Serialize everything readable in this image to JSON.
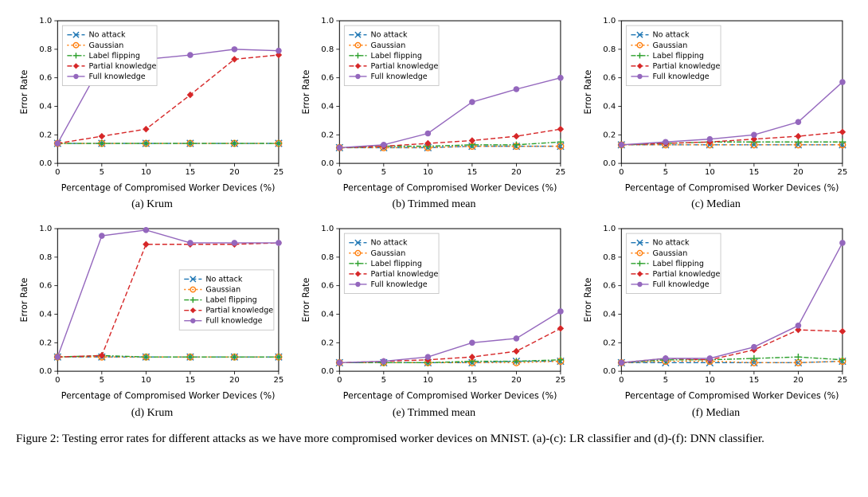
{
  "figure": {
    "caption": "Figure 2: Testing error rates for different attacks as we have more compromised worker devices on MNIST. (a)-(c): LR classifier and (d)-(f): DNN classifier.",
    "panels": [
      {
        "key": "a",
        "sub_caption": "(a) Krum",
        "legend_pos": "upper-left",
        "xlabel": "Percentage of Compromised Worker Devices (%)",
        "ylabel": "Error Rate",
        "x": [
          0,
          5,
          10,
          15,
          20,
          25
        ],
        "xlim": [
          0,
          25
        ],
        "ylim": [
          0,
          1.0
        ],
        "ytick_step": 0.2,
        "series": {
          "no_attack": [
            0.14,
            0.14,
            0.14,
            0.14,
            0.14,
            0.14
          ],
          "gaussian": [
            0.14,
            0.14,
            0.14,
            0.14,
            0.14,
            0.14
          ],
          "label_flipping": [
            0.14,
            0.14,
            0.14,
            0.14,
            0.14,
            0.14
          ],
          "partial_knowledge": [
            0.14,
            0.19,
            0.24,
            0.48,
            0.73,
            0.76
          ],
          "full_knowledge": [
            0.14,
            0.7,
            0.73,
            0.76,
            0.8,
            0.79
          ]
        }
      },
      {
        "key": "b",
        "sub_caption": "(b) Trimmed mean",
        "legend_pos": "upper-left",
        "xlabel": "Percentage of Compromised Worker Devices (%)",
        "ylabel": "Error Rate",
        "x": [
          0,
          5,
          10,
          15,
          20,
          25
        ],
        "xlim": [
          0,
          25
        ],
        "ylim": [
          0,
          1.0
        ],
        "ytick_step": 0.2,
        "series": {
          "no_attack": [
            0.11,
            0.11,
            0.11,
            0.12,
            0.12,
            0.12
          ],
          "gaussian": [
            0.11,
            0.11,
            0.11,
            0.12,
            0.12,
            0.12
          ],
          "label_flipping": [
            0.11,
            0.12,
            0.12,
            0.13,
            0.13,
            0.15
          ],
          "partial_knowledge": [
            0.11,
            0.12,
            0.14,
            0.16,
            0.19,
            0.24
          ],
          "full_knowledge": [
            0.11,
            0.13,
            0.21,
            0.43,
            0.52,
            0.6
          ]
        }
      },
      {
        "key": "c",
        "sub_caption": "(c) Median",
        "legend_pos": "upper-left",
        "xlabel": "Percentage of Compromised Worker Devices (%)",
        "ylabel": "Error Rate",
        "x": [
          0,
          5,
          10,
          15,
          20,
          25
        ],
        "xlim": [
          0,
          25
        ],
        "ylim": [
          0,
          1.0
        ],
        "ytick_step": 0.2,
        "series": {
          "no_attack": [
            0.13,
            0.13,
            0.13,
            0.13,
            0.13,
            0.13
          ],
          "gaussian": [
            0.13,
            0.13,
            0.13,
            0.13,
            0.13,
            0.13
          ],
          "label_flipping": [
            0.13,
            0.14,
            0.15,
            0.15,
            0.15,
            0.15
          ],
          "partial_knowledge": [
            0.13,
            0.14,
            0.15,
            0.17,
            0.19,
            0.22
          ],
          "full_knowledge": [
            0.13,
            0.15,
            0.17,
            0.2,
            0.29,
            0.57
          ]
        }
      },
      {
        "key": "d",
        "sub_caption": "(d) Krum",
        "legend_pos": "center-right",
        "xlabel": "Percentage of Compromised Worker Devices (%)",
        "ylabel": "Error Rate",
        "x": [
          0,
          5,
          10,
          15,
          20,
          25
        ],
        "xlim": [
          0,
          25
        ],
        "ylim": [
          0,
          1.0
        ],
        "ytick_step": 0.2,
        "series": {
          "no_attack": [
            0.1,
            0.1,
            0.1,
            0.1,
            0.1,
            0.1
          ],
          "gaussian": [
            0.1,
            0.1,
            0.1,
            0.1,
            0.1,
            0.1
          ],
          "label_flipping": [
            0.1,
            0.11,
            0.1,
            0.1,
            0.1,
            0.1
          ],
          "partial_knowledge": [
            0.1,
            0.11,
            0.89,
            0.89,
            0.89,
            0.9
          ],
          "full_knowledge": [
            0.1,
            0.95,
            0.99,
            0.9,
            0.9,
            0.9
          ]
        }
      },
      {
        "key": "e",
        "sub_caption": "(e) Trimmed mean",
        "legend_pos": "upper-left",
        "xlabel": "Percentage of Compromised Worker Devices (%)",
        "ylabel": "Error Rate",
        "x": [
          0,
          5,
          10,
          15,
          20,
          25
        ],
        "xlim": [
          0,
          25
        ],
        "ylim": [
          0,
          1.0
        ],
        "ytick_step": 0.2,
        "series": {
          "no_attack": [
            0.06,
            0.06,
            0.06,
            0.06,
            0.07,
            0.07
          ],
          "gaussian": [
            0.06,
            0.06,
            0.06,
            0.06,
            0.06,
            0.07
          ],
          "label_flipping": [
            0.06,
            0.06,
            0.06,
            0.07,
            0.07,
            0.08
          ],
          "partial_knowledge": [
            0.06,
            0.07,
            0.08,
            0.1,
            0.14,
            0.3
          ],
          "full_knowledge": [
            0.06,
            0.07,
            0.1,
            0.2,
            0.23,
            0.42
          ]
        }
      },
      {
        "key": "f",
        "sub_caption": "(f) Median",
        "legend_pos": "upper-left",
        "xlabel": "Percentage of Compromised Worker Devices (%)",
        "ylabel": "Error Rate",
        "x": [
          0,
          5,
          10,
          15,
          20,
          25
        ],
        "xlim": [
          0,
          25
        ],
        "ylim": [
          0,
          1.0
        ],
        "ytick_step": 0.2,
        "series": {
          "no_attack": [
            0.06,
            0.06,
            0.06,
            0.06,
            0.06,
            0.07
          ],
          "gaussian": [
            0.06,
            0.07,
            0.07,
            0.06,
            0.06,
            0.07
          ],
          "label_flipping": [
            0.06,
            0.08,
            0.08,
            0.09,
            0.1,
            0.08
          ],
          "partial_knowledge": [
            0.06,
            0.09,
            0.08,
            0.15,
            0.29,
            0.28
          ],
          "full_knowledge": [
            0.06,
            0.09,
            0.09,
            0.17,
            0.32,
            0.9
          ]
        }
      }
    ],
    "series_meta": [
      {
        "id": "no_attack",
        "label": "No attack",
        "color": "#1f77b4",
        "dash": "6,3",
        "marker": "x"
      },
      {
        "id": "gaussian",
        "label": "Gaussian",
        "color": "#ff7f0e",
        "dash": "2,3",
        "marker": "circle"
      },
      {
        "id": "label_flipping",
        "label": "Label flipping",
        "color": "#2ca02c",
        "dash": "6,2,2,2",
        "marker": "plus"
      },
      {
        "id": "partial_knowledge",
        "label": "Partial knowledge",
        "color": "#d62728",
        "dash": "6,3",
        "marker": "diamond"
      },
      {
        "id": "full_knowledge",
        "label": "Full knowledge",
        "color": "#9467bd",
        "dash": "",
        "marker": "circle-filled"
      }
    ],
    "styling": {
      "background_color": "#ffffff",
      "axis_color": "#000000",
      "legend_border": "#bfbfbf",
      "marker_size": 4.2,
      "line_width": 1.4,
      "tick_fontsize": 10,
      "label_fontsize": 11,
      "legend_fontsize": 9.5,
      "caption_fontsize": 15
    }
  }
}
